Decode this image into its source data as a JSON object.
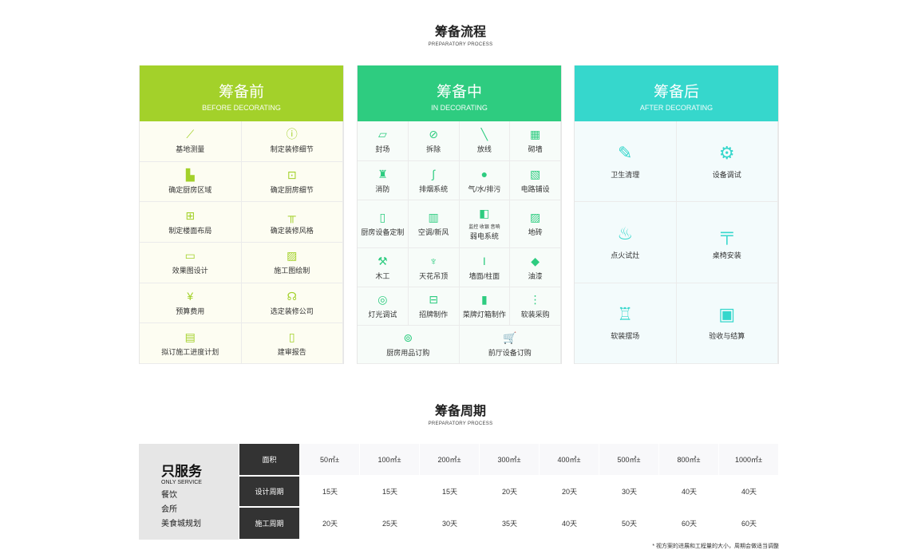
{
  "process": {
    "title": "筹备流程",
    "subtitle": "PREPARATORY PROCESS",
    "before": {
      "title": "筹备前",
      "subtitle": "BEFORE DECORATING",
      "accent": "#a3d12a",
      "items": [
        {
          "label": "基地测量",
          "icon": "ruler-icon",
          "g": "⟋"
        },
        {
          "label": "制定装修细节",
          "icon": "info-icon",
          "g": "ⓘ"
        },
        {
          "label": "确定厨房区域",
          "icon": "kitchen-area-icon",
          "g": "▙"
        },
        {
          "label": "确定厨房细节",
          "icon": "toolbox-icon",
          "g": "⊡"
        },
        {
          "label": "制定楼面布局",
          "icon": "layout-grid-icon",
          "g": "⊞"
        },
        {
          "label": "确定装修风格",
          "icon": "table-chairs-icon",
          "g": "╥"
        },
        {
          "label": "效果图设计",
          "icon": "monitor-pen-icon",
          "g": "▭"
        },
        {
          "label": "施工图绘制",
          "icon": "image-icon",
          "g": "▨"
        },
        {
          "label": "预算费用",
          "icon": "yen-icon",
          "g": "¥"
        },
        {
          "label": "选定装修公司",
          "icon": "handshake-icon",
          "g": "☊"
        },
        {
          "label": "拟订施工进度计划",
          "icon": "calendar-icon",
          "g": "▤"
        },
        {
          "label": "建审报告",
          "icon": "report-icon",
          "g": "▯"
        }
      ]
    },
    "during": {
      "title": "筹备中",
      "subtitle": "IN DECORATING",
      "accent": "#2ecc80",
      "items": [
        {
          "label": "封场",
          "icon": "barrier-icon",
          "g": "▱"
        },
        {
          "label": "拆除",
          "icon": "prohibit-icon",
          "g": "⊘"
        },
        {
          "label": "放线",
          "icon": "line-icon",
          "g": "╲"
        },
        {
          "label": "砌墙",
          "icon": "brick-icon",
          "g": "▦"
        },
        {
          "label": "消防",
          "icon": "extinguisher-icon",
          "g": "♜"
        },
        {
          "label": "排烟系统",
          "icon": "pipe-icon",
          "g": "∫"
        },
        {
          "label": "气/水/排污",
          "icon": "drop-icon",
          "g": "●"
        },
        {
          "label": "电路铺设",
          "icon": "circuit-icon",
          "g": "▧"
        },
        {
          "label": "厨房设备定制",
          "icon": "fridge-icon",
          "g": "▯"
        },
        {
          "label": "空调/新风",
          "icon": "air-conditioner-icon",
          "g": "▥"
        },
        {
          "label": "弱电系统",
          "sublabel": "监控 收银 音响",
          "icon": "camera-icon",
          "g": "◧"
        },
        {
          "label": "地砖",
          "icon": "tile-icon",
          "g": "▨"
        },
        {
          "label": "木工",
          "icon": "axe-icon",
          "g": "⚒"
        },
        {
          "label": "天花吊顶",
          "icon": "chandelier-icon",
          "g": "♆"
        },
        {
          "label": "墙面/柱面",
          "icon": "column-icon",
          "g": "I"
        },
        {
          "label": "油漆",
          "icon": "paint-bucket-icon",
          "g": "◆"
        },
        {
          "label": "灯光调试",
          "icon": "bulb-icon",
          "g": "◎"
        },
        {
          "label": "招牌制作",
          "icon": "signboard-icon",
          "g": "⊟"
        },
        {
          "label": "菜牌灯箱制作",
          "icon": "lightbox-icon",
          "g": "▮"
        },
        {
          "label": "软装采购",
          "icon": "sliders-icon",
          "g": "⋮"
        },
        {
          "label": "厨房用品订购",
          "icon": "tableware-icon",
          "g": "⊚"
        },
        {
          "label": "前厅设备订购",
          "icon": "cart-icon",
          "g": "🛒"
        }
      ]
    },
    "after": {
      "title": "筹备后",
      "subtitle": "AFTER DECORATING",
      "accent": "#36d7cc",
      "items": [
        {
          "label": "卫生清理",
          "icon": "broom-icon",
          "g": "✎"
        },
        {
          "label": "设备调试",
          "icon": "gear-icon",
          "g": "⚙"
        },
        {
          "label": "点火试灶",
          "icon": "flame-icon",
          "g": "♨"
        },
        {
          "label": "桌椅安装",
          "icon": "table-icon",
          "g": "╤"
        },
        {
          "label": "软装摆场",
          "icon": "furniture-icon",
          "g": "♖"
        },
        {
          "label": "验收与结算",
          "icon": "clipboard-check-icon",
          "g": "▣"
        }
      ]
    }
  },
  "cycle": {
    "title": "筹备周期",
    "subtitle": "PREPARATORY PROCESS",
    "service": {
      "title": "只服务",
      "subtitle": "ONLY SERVICE",
      "items": [
        "餐饮",
        "会所",
        "美食城规划"
      ]
    },
    "rows": [
      {
        "label": "面积",
        "values": [
          "50㎡±",
          "100㎡±",
          "200㎡±",
          "300㎡±",
          "400㎡±",
          "500㎡±",
          "800㎡±",
          "1000㎡±"
        ]
      },
      {
        "label": "设计周期",
        "values": [
          "15天",
          "15天",
          "15天",
          "20天",
          "20天",
          "30天",
          "40天",
          "40天"
        ]
      },
      {
        "label": "施工周期",
        "values": [
          "20天",
          "25天",
          "30天",
          "35天",
          "40天",
          "50天",
          "60天",
          "60天"
        ]
      }
    ],
    "note": "* 视方案的进展和工程量的大小，周期会做适当调整"
  }
}
